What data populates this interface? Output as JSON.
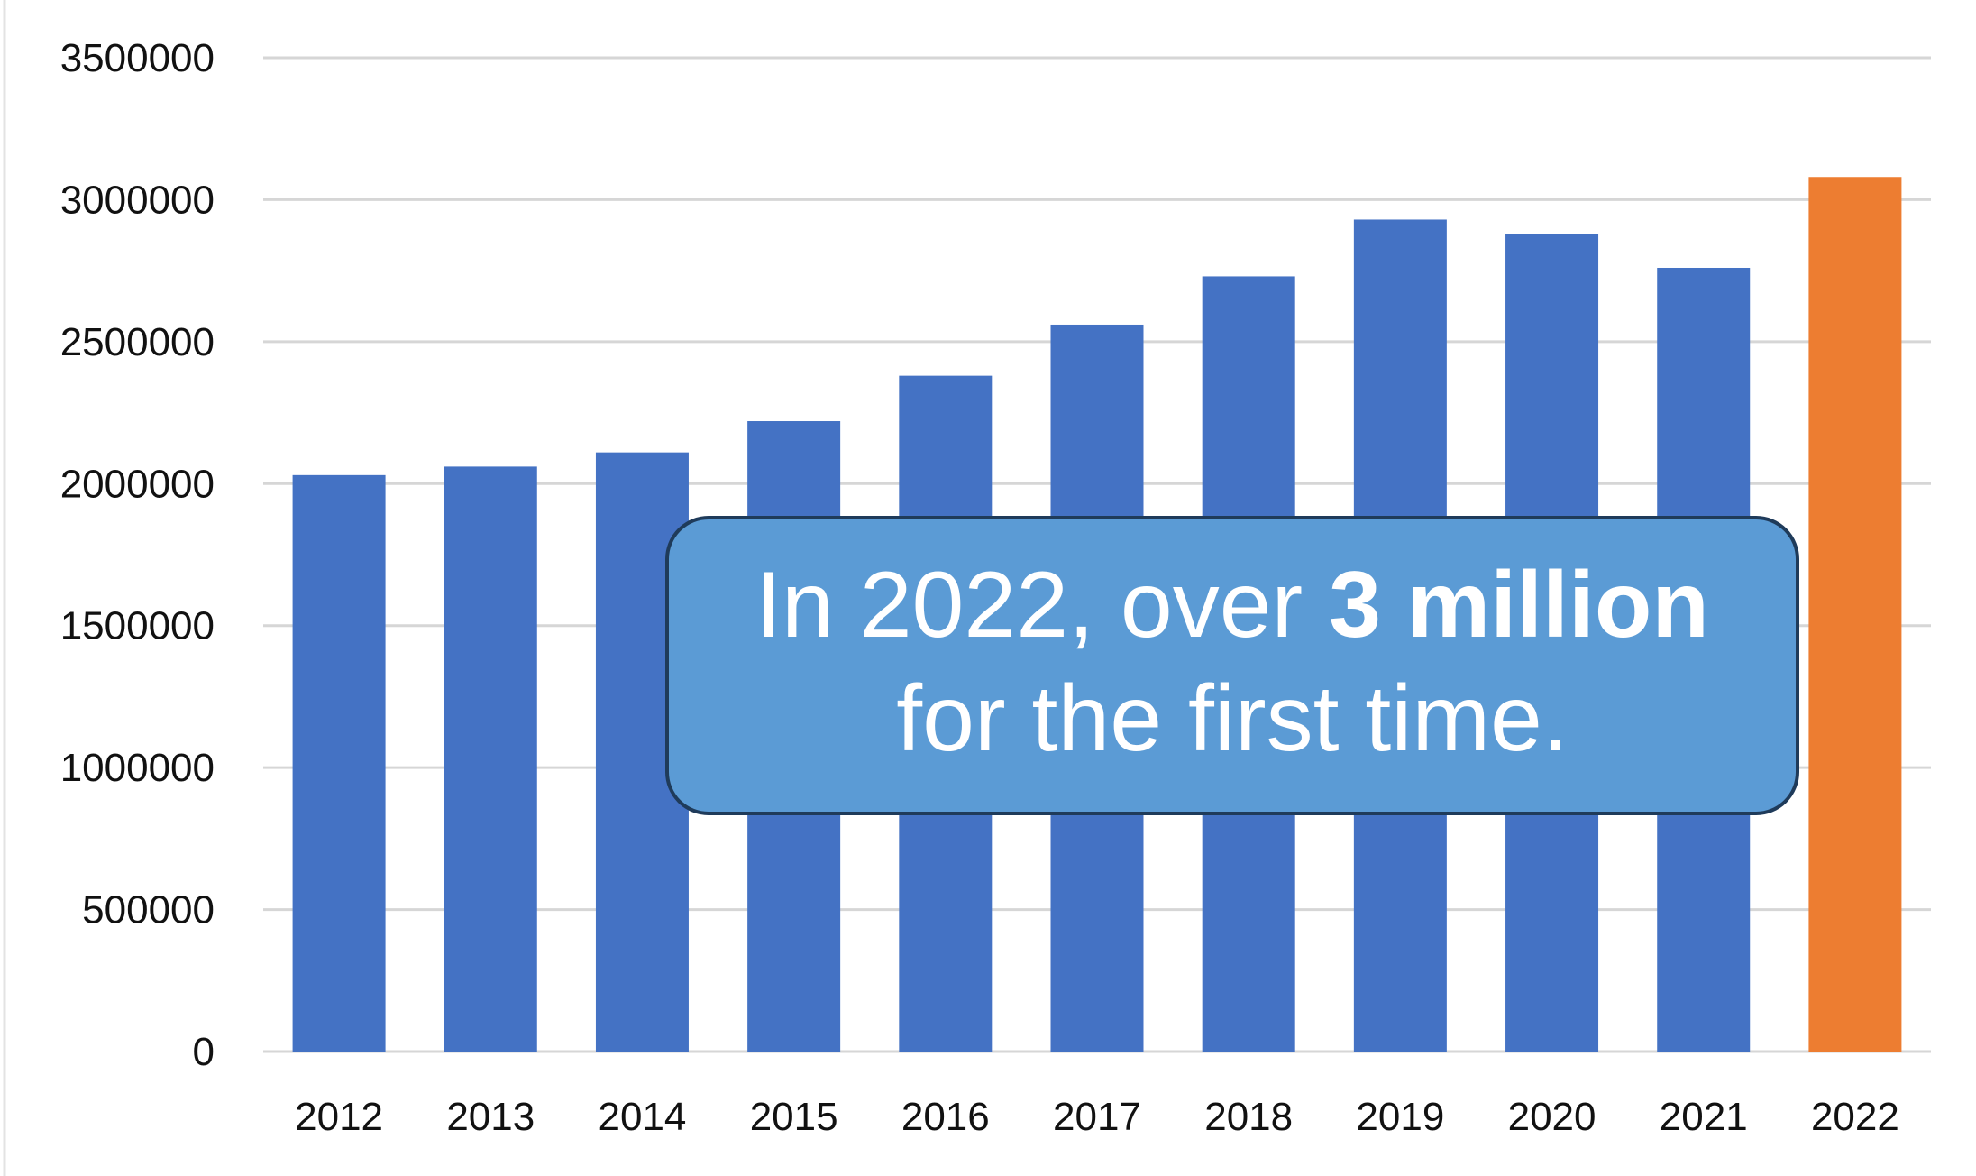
{
  "chart_data": {
    "type": "bar",
    "title": "",
    "xlabel": "",
    "ylabel": "",
    "categories": [
      "2012",
      "2013",
      "2014",
      "2015",
      "2016",
      "2017",
      "2018",
      "2019",
      "2020",
      "2021",
      "2022"
    ],
    "values": [
      2030000,
      2060000,
      2110000,
      2220000,
      2380000,
      2560000,
      2730000,
      2930000,
      2880000,
      2760000,
      3080000
    ],
    "colors": [
      "#4472c4",
      "#4472c4",
      "#4472c4",
      "#4472c4",
      "#4472c4",
      "#4472c4",
      "#4472c4",
      "#4472c4",
      "#4472c4",
      "#4472c4",
      "#ed7d31"
    ],
    "ylim": [
      0,
      3500000
    ],
    "yticks": [
      "0",
      "500000",
      "1000000",
      "1500000",
      "2000000",
      "2500000",
      "3000000",
      "3500000"
    ],
    "grid": true,
    "legend": "none",
    "annotation": {
      "line1_prefix": "In 2022, over ",
      "line1_emphasis": "3 million",
      "line2": "for the first time."
    }
  }
}
